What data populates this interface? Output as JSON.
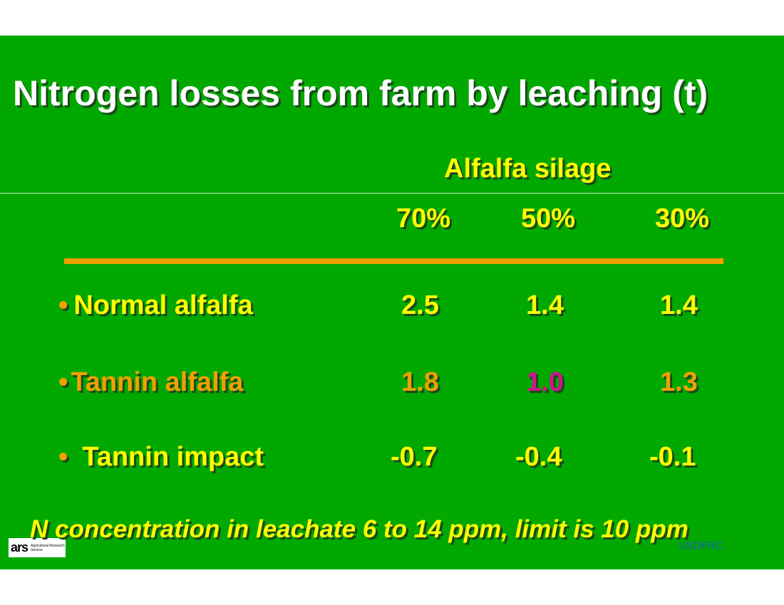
{
  "slide": {
    "title": "Nitrogen losses from farm by leaching (t)",
    "group_label": "Alfalfa silage",
    "columns": [
      "70%",
      "50%",
      "30%"
    ],
    "rows": [
      {
        "bullet": "•",
        "label": "Normal alfalfa",
        "values": [
          "2.5",
          "1.4",
          "1.4"
        ]
      },
      {
        "bullet": "•",
        "label": "Tannin alfalfa",
        "values": [
          "1.8",
          "1.0",
          "1.3"
        ]
      },
      {
        "bullet": "•",
        "label": "Tannin impact",
        "values": [
          "-0.7",
          "-0.4",
          "-0.1"
        ]
      }
    ],
    "footnote": "N concentration in leachate 6 to 14 ppm, limit is 10 ppm",
    "logo": {
      "mark": "ars",
      "text": "Agricultural Research Service"
    },
    "credit": "USDFRC"
  },
  "colors": {
    "background": "#00a800",
    "title": "#ffffff",
    "yellow": "#ffff00",
    "orange": "#f0a000",
    "magenta": "#d0148c"
  }
}
